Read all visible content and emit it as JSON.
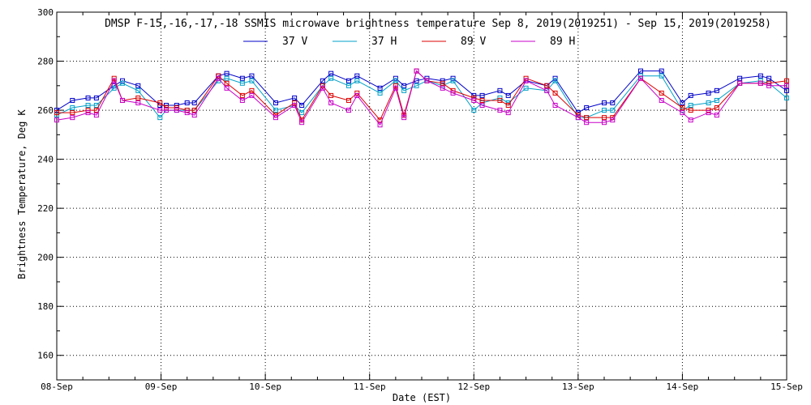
{
  "chart_data": {
    "type": "line",
    "title": "DMSP F-15,-16,-17,-18 SSMIS microwave brightness temperature Sep  8, 2019(2019251) - Sep 15, 2019(2019258)",
    "xlabel": "Date (EST)",
    "ylabel": "Brightness Temperature, Deg K",
    "xlim": [
      0,
      7
    ],
    "ylim": [
      150,
      300
    ],
    "x_tick_labels": [
      "08-Sep",
      "09-Sep",
      "10-Sep",
      "11-Sep",
      "12-Sep",
      "13-Sep",
      "14-Sep",
      "15-Sep"
    ],
    "y_ticks": [
      160,
      180,
      200,
      220,
      240,
      260,
      280,
      300
    ],
    "grid": true,
    "legend_placement": "top-center",
    "markers": "open-square",
    "series": [
      {
        "name": "37 V",
        "color": "#0000c8",
        "x": [
          0.0,
          0.15,
          0.3,
          0.38,
          0.55,
          0.63,
          0.78,
          0.99,
          1.05,
          1.15,
          1.25,
          1.32,
          1.55,
          1.63,
          1.78,
          1.87,
          2.1,
          2.28,
          2.35,
          2.55,
          2.63,
          2.8,
          2.88,
          3.1,
          3.25,
          3.33,
          3.45,
          3.55,
          3.7,
          3.8,
          4.0,
          4.08,
          4.25,
          4.33,
          4.5,
          4.7,
          4.78,
          5.0,
          5.08,
          5.25,
          5.33,
          5.6,
          5.8,
          6.0,
          6.08,
          6.25,
          6.33,
          6.55,
          6.75,
          6.83,
          7.0
        ],
        "values": [
          260,
          264,
          265,
          265,
          270,
          272,
          270,
          262,
          262,
          262,
          263,
          263,
          274,
          275,
          273,
          274,
          263,
          265,
          262,
          272,
          275,
          272,
          274,
          269,
          273,
          270,
          272,
          273,
          272,
          273,
          266,
          266,
          268,
          266,
          272,
          270,
          273,
          259,
          261,
          263,
          263,
          276,
          276,
          263,
          266,
          267,
          268,
          273,
          274,
          273,
          268
        ]
      },
      {
        "name": "37 H",
        "color": "#00a0c8",
        "x": [
          0.0,
          0.15,
          0.3,
          0.38,
          0.55,
          0.63,
          0.78,
          0.99,
          1.05,
          1.15,
          1.25,
          1.32,
          1.55,
          1.63,
          1.78,
          1.87,
          2.1,
          2.28,
          2.35,
          2.55,
          2.63,
          2.8,
          2.88,
          3.1,
          3.25,
          3.33,
          3.45,
          3.55,
          3.7,
          3.8,
          4.0,
          4.08,
          4.25,
          4.33,
          4.5,
          4.7,
          4.78,
          5.0,
          5.08,
          5.25,
          5.33,
          5.6,
          5.8,
          6.0,
          6.08,
          6.25,
          6.33,
          6.55,
          6.75,
          6.83,
          7.0
        ],
        "values": [
          258,
          261,
          262,
          262,
          269,
          271,
          268,
          257,
          260,
          260,
          260,
          260,
          272,
          273,
          271,
          272,
          260,
          262,
          259,
          270,
          273,
          270,
          272,
          267,
          272,
          268,
          270,
          272,
          270,
          272,
          260,
          263,
          265,
          263,
          269,
          268,
          272,
          257,
          257,
          260,
          260,
          274,
          274,
          260,
          262,
          263,
          264,
          271,
          272,
          271,
          265
        ]
      },
      {
        "name": "89 V",
        "color": "#dc0000",
        "x": [
          0.0,
          0.15,
          0.3,
          0.38,
          0.55,
          0.63,
          0.78,
          0.99,
          1.05,
          1.15,
          1.25,
          1.32,
          1.55,
          1.63,
          1.78,
          1.87,
          2.1,
          2.28,
          2.35,
          2.55,
          2.63,
          2.8,
          2.88,
          3.1,
          3.25,
          3.33,
          3.45,
          3.55,
          3.7,
          3.8,
          4.0,
          4.08,
          4.25,
          4.33,
          4.5,
          4.7,
          4.78,
          5.0,
          5.08,
          5.25,
          5.33,
          5.6,
          5.8,
          6.0,
          6.08,
          6.25,
          6.33,
          6.55,
          6.75,
          6.83,
          7.0
        ],
        "values": [
          259,
          259,
          260,
          260,
          273,
          264,
          265,
          263,
          261,
          261,
          260,
          260,
          274,
          271,
          266,
          268,
          258,
          263,
          256,
          270,
          266,
          264,
          267,
          256,
          270,
          258,
          276,
          272,
          271,
          268,
          265,
          264,
          264,
          262,
          273,
          270,
          267,
          258,
          257,
          257,
          257,
          273,
          267,
          261,
          260,
          260,
          261,
          271,
          271,
          271,
          272
        ]
      },
      {
        "name": "89 H",
        "color": "#c800c8",
        "x": [
          0.0,
          0.15,
          0.3,
          0.38,
          0.55,
          0.63,
          0.78,
          0.99,
          1.05,
          1.15,
          1.25,
          1.32,
          1.55,
          1.63,
          1.78,
          1.87,
          2.1,
          2.28,
          2.35,
          2.55,
          2.63,
          2.8,
          2.88,
          3.1,
          3.25,
          3.33,
          3.45,
          3.55,
          3.7,
          3.8,
          4.0,
          4.08,
          4.25,
          4.33,
          4.5,
          4.7,
          4.78,
          5.0,
          5.08,
          5.25,
          5.33,
          5.6,
          5.8,
          6.0,
          6.08,
          6.25,
          6.33,
          6.55,
          6.75,
          6.83,
          7.0
        ],
        "values": [
          256,
          257,
          259,
          258,
          272,
          264,
          263,
          260,
          260,
          260,
          259,
          258,
          273,
          269,
          264,
          266,
          257,
          262,
          255,
          269,
          263,
          260,
          266,
          254,
          269,
          257,
          276,
          272,
          269,
          267,
          264,
          262,
          260,
          259,
          272,
          268,
          262,
          257,
          255,
          255,
          256,
          273,
          264,
          259,
          256,
          259,
          258,
          271,
          271,
          270,
          270
        ]
      }
    ]
  }
}
